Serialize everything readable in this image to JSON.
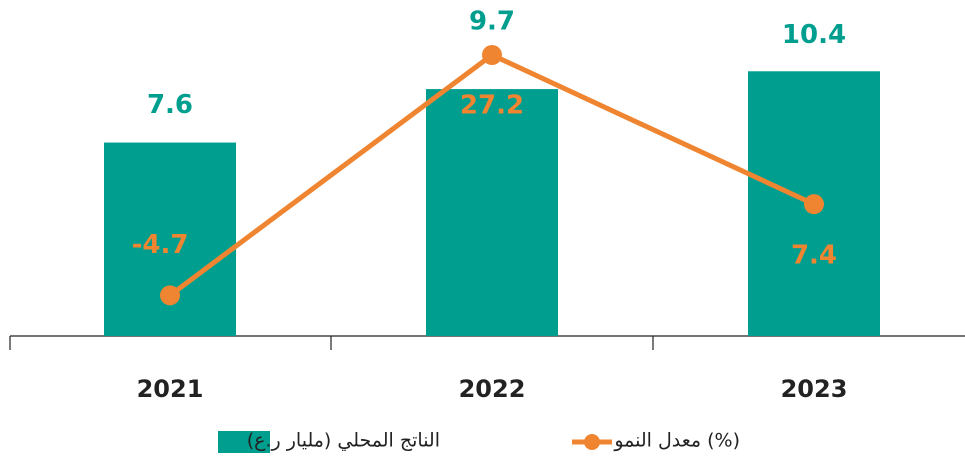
{
  "chart_data": {
    "type": "bar",
    "categories": [
      "2021",
      "2022",
      "2023"
    ],
    "series": [
      {
        "name": "الناتج المحلي (مليار ر.ع)",
        "type": "bar",
        "color": "#009e8f",
        "values": [
          7.6,
          9.7,
          10.4
        ]
      },
      {
        "name": "معدل النمو (%)",
        "type": "line",
        "color": "#ef8530",
        "axis": "y2",
        "values": [
          -4.7,
          27.2,
          7.4
        ]
      }
    ],
    "ylim": [
      0,
      13.2
    ],
    "y2lim": [
      -10.1,
      34.5
    ],
    "grid": false
  }
}
